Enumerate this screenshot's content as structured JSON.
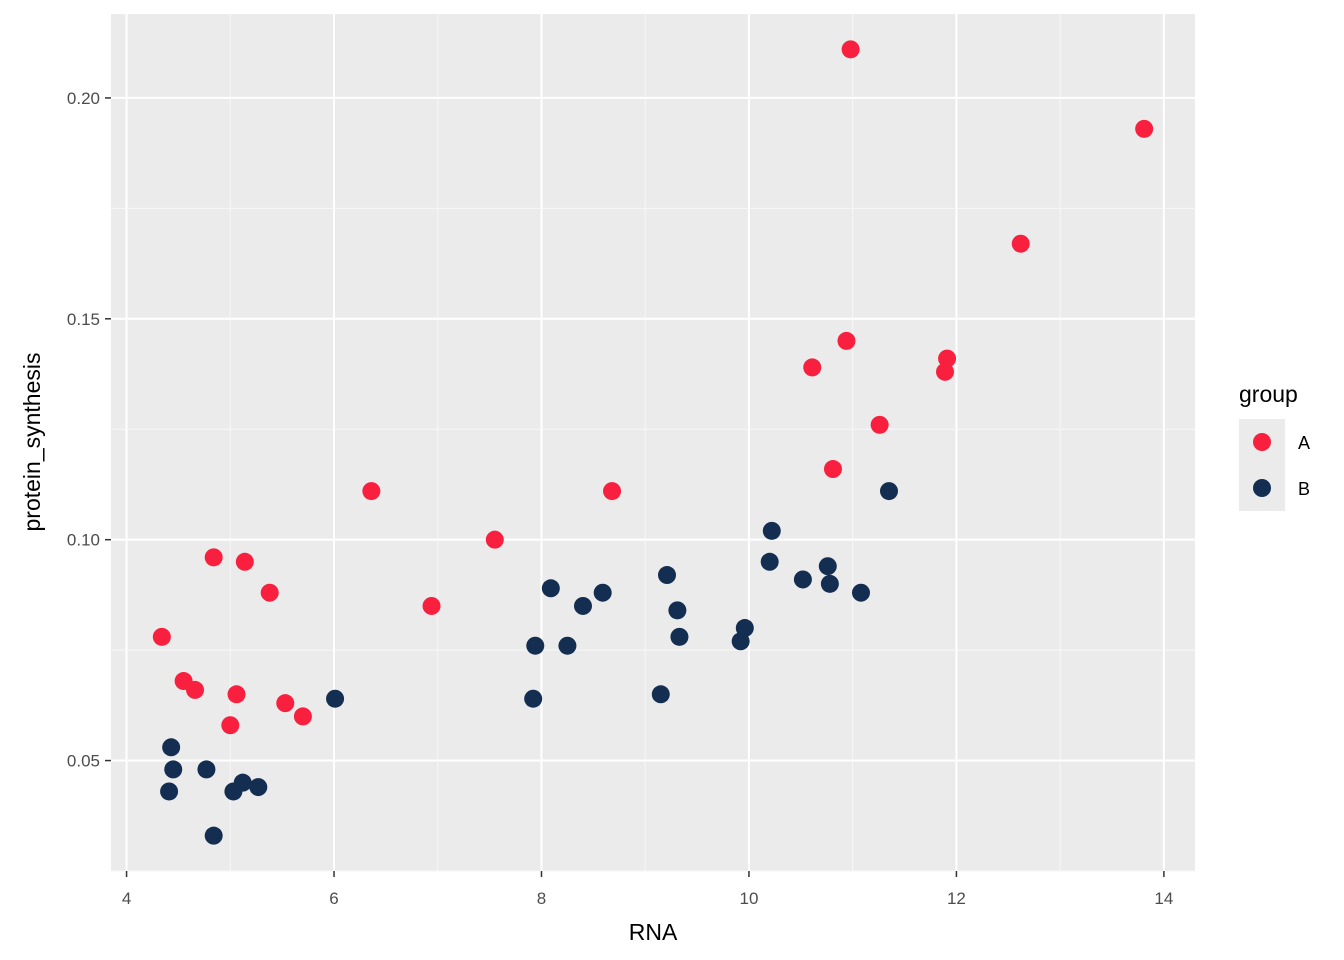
{
  "chart_data": {
    "type": "scatter",
    "xlabel": "RNA",
    "ylabel": "protein_synthesis",
    "xlim": [
      3.85,
      14.3
    ],
    "ylim": [
      0.025,
      0.219
    ],
    "x_ticks": [
      4,
      6,
      8,
      10,
      12,
      14
    ],
    "x_tick_labels": [
      "4",
      "6",
      "8",
      "10",
      "12",
      "14"
    ],
    "y_ticks": [
      0.05,
      0.1,
      0.15,
      0.2
    ],
    "y_tick_labels": [
      "0.05",
      "0.10",
      "0.15",
      "0.20"
    ],
    "grid": true,
    "legend": {
      "title": "group",
      "placement": "right"
    },
    "series": [
      {
        "name": "A",
        "color": "#f8203e",
        "points": [
          [
            4.34,
            0.078
          ],
          [
            4.55,
            0.068
          ],
          [
            4.66,
            0.066
          ],
          [
            4.84,
            0.096
          ],
          [
            5.0,
            0.058
          ],
          [
            5.06,
            0.065
          ],
          [
            5.14,
            0.095
          ],
          [
            5.38,
            0.088
          ],
          [
            5.53,
            0.063
          ],
          [
            5.7,
            0.06
          ],
          [
            6.36,
            0.111
          ],
          [
            6.94,
            0.085
          ],
          [
            7.55,
            0.1
          ],
          [
            8.68,
            0.111
          ],
          [
            10.61,
            0.139
          ],
          [
            10.81,
            0.116
          ],
          [
            10.94,
            0.145
          ],
          [
            10.98,
            0.211
          ],
          [
            11.26,
            0.126
          ],
          [
            11.89,
            0.138
          ],
          [
            11.91,
            0.141
          ],
          [
            12.62,
            0.167
          ],
          [
            13.81,
            0.193
          ]
        ]
      },
      {
        "name": "B",
        "color": "#142e52",
        "points": [
          [
            4.41,
            0.043
          ],
          [
            4.43,
            0.053
          ],
          [
            4.45,
            0.048
          ],
          [
            4.77,
            0.048
          ],
          [
            4.84,
            0.033
          ],
          [
            5.03,
            0.043
          ],
          [
            5.12,
            0.045
          ],
          [
            5.27,
            0.044
          ],
          [
            6.01,
            0.064
          ],
          [
            7.92,
            0.064
          ],
          [
            7.94,
            0.076
          ],
          [
            8.09,
            0.089
          ],
          [
            8.25,
            0.076
          ],
          [
            8.4,
            0.085
          ],
          [
            8.59,
            0.088
          ],
          [
            9.15,
            0.065
          ],
          [
            9.21,
            0.092
          ],
          [
            9.31,
            0.084
          ],
          [
            9.33,
            0.078
          ],
          [
            9.92,
            0.077
          ],
          [
            9.96,
            0.08
          ],
          [
            10.2,
            0.095
          ],
          [
            10.22,
            0.102
          ],
          [
            10.52,
            0.091
          ],
          [
            10.76,
            0.094
          ],
          [
            10.78,
            0.09
          ],
          [
            11.08,
            0.088
          ],
          [
            11.35,
            0.111
          ]
        ]
      }
    ]
  }
}
